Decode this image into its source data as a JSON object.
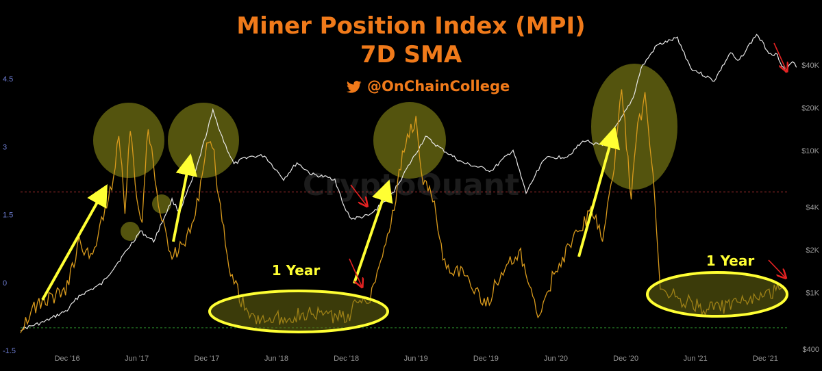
{
  "title": {
    "line1": "Miner Position Index (MPI)",
    "line2": "7D SMA"
  },
  "attribution": {
    "handle": "@OnChainCollege",
    "icon": "twitter-bird-icon"
  },
  "watermark": "CryptoQuant",
  "colors": {
    "background": "#000000",
    "mpi": "#d99a1c",
    "price": "#e8e8e8",
    "title": "#f07a1a",
    "highlight_fill": "#6b6b12",
    "annotation_arrow": "#ffff33",
    "ellipse_outline": "#ffff33",
    "red_arrow": "#e52222",
    "upper_threshold": "#b03030",
    "lower_threshold": "#2a8a2a",
    "left_axis_text": "#6f7fd6",
    "axis_text": "#9a9a9a"
  },
  "annotations": {
    "one_year_left": "1 Year",
    "one_year_right": "1 Year"
  },
  "chart_data": {
    "type": "line",
    "grid": false,
    "x_ticks": [
      "Dec '16",
      "Jun '17",
      "Dec '17",
      "Jun '18",
      "Dec '18",
      "Jun '19",
      "Dec '19",
      "Jun '20",
      "Dec '20",
      "Jun '21",
      "Dec '21"
    ],
    "x_range": [
      "2016-08",
      "2022-02"
    ],
    "left_axis": {
      "label": "",
      "ticks": [
        "4.5",
        "3",
        "1.5",
        "0",
        "-1.5"
      ],
      "range": [
        -1.5,
        5.0
      ]
    },
    "right_axis": {
      "label": "",
      "scale": "log",
      "ticks": [
        "$40K",
        "$20K",
        "$10K",
        "$4K",
        "$2K",
        "$1K",
        "$400"
      ],
      "range": [
        400,
        60000
      ]
    },
    "thresholds": [
      {
        "value": 2,
        "color": "#b03030"
      },
      {
        "value": -1,
        "color": "#2a8a2a"
      }
    ],
    "series": [
      {
        "name": "",
        "axis": "left",
        "color": "#d99a1c",
        "points": [
          [
            "2016-08-01",
            -1.0
          ],
          [
            "2016-09-01",
            -0.6
          ],
          [
            "2016-10-01",
            -0.4
          ],
          [
            "2016-11-01",
            -0.3
          ],
          [
            "2016-12-01",
            -0.1
          ],
          [
            "2017-01-01",
            0.9
          ],
          [
            "2017-02-01",
            0.5
          ],
          [
            "2017-03-01",
            1.4
          ],
          [
            "2017-04-01",
            2.2
          ],
          [
            "2017-04-15",
            3.4
          ],
          [
            "2017-05-01",
            1.6
          ],
          [
            "2017-05-15",
            3.5
          ],
          [
            "2017-06-01",
            1.9
          ],
          [
            "2017-06-15",
            1.4
          ],
          [
            "2017-07-01",
            3.5
          ],
          [
            "2017-08-01",
            1.5
          ],
          [
            "2017-09-01",
            0.6
          ],
          [
            "2017-10-01",
            0.8
          ],
          [
            "2017-11-01",
            1.5
          ],
          [
            "2017-11-15",
            2.2
          ],
          [
            "2017-12-01",
            3.1
          ],
          [
            "2017-12-20",
            2.8
          ],
          [
            "2018-01-10",
            1.3
          ],
          [
            "2018-02-01",
            0.3
          ],
          [
            "2018-03-01",
            -0.4
          ],
          [
            "2018-04-01",
            -0.8
          ],
          [
            "2018-06-01",
            -0.8
          ],
          [
            "2018-08-01",
            -0.7
          ],
          [
            "2018-10-01",
            -0.7
          ],
          [
            "2018-12-01",
            -0.8
          ],
          [
            "2019-01-01",
            -0.4
          ],
          [
            "2019-02-01",
            -0.3
          ],
          [
            "2019-03-01",
            0.5
          ],
          [
            "2019-04-01",
            1.5
          ],
          [
            "2019-05-01",
            3.0
          ],
          [
            "2019-06-01",
            3.6
          ],
          [
            "2019-06-20",
            2.2
          ],
          [
            "2019-07-15",
            1.9
          ],
          [
            "2019-08-15",
            0.4
          ],
          [
            "2019-10-01",
            0.2
          ],
          [
            "2019-12-01",
            -0.5
          ],
          [
            "2020-01-15",
            0.3
          ],
          [
            "2020-03-01",
            0.6
          ],
          [
            "2020-04-15",
            -0.8
          ],
          [
            "2020-06-01",
            0.3
          ],
          [
            "2020-07-15",
            0.9
          ],
          [
            "2020-09-01",
            1.6
          ],
          [
            "2020-10-01",
            1.0
          ],
          [
            "2020-11-01",
            2.6
          ],
          [
            "2020-11-20",
            4.3
          ],
          [
            "2020-12-15",
            1.9
          ],
          [
            "2021-01-01",
            3.4
          ],
          [
            "2021-01-20",
            4.1
          ],
          [
            "2021-02-10",
            2.5
          ],
          [
            "2021-03-01",
            -0.1
          ],
          [
            "2021-05-01",
            -0.4
          ],
          [
            "2021-07-01",
            -0.6
          ],
          [
            "2021-09-01",
            -0.5
          ],
          [
            "2021-11-01",
            -0.4
          ],
          [
            "2022-01-15",
            -0.1
          ]
        ]
      },
      {
        "name": "",
        "axis": "right",
        "color": "#e8e8e8",
        "points": [
          [
            "2016-08-01",
            550
          ],
          [
            "2016-10-01",
            620
          ],
          [
            "2016-12-01",
            750
          ],
          [
            "2017-01-01",
            950
          ],
          [
            "2017-03-01",
            1150
          ],
          [
            "2017-05-01",
            1900
          ],
          [
            "2017-06-10",
            2700
          ],
          [
            "2017-07-15",
            2300
          ],
          [
            "2017-09-01",
            4500
          ],
          [
            "2017-09-20",
            3700
          ],
          [
            "2017-11-01",
            7000
          ],
          [
            "2017-12-17",
            19000
          ],
          [
            "2018-01-15",
            11500
          ],
          [
            "2018-02-10",
            8000
          ],
          [
            "2018-03-15",
            9000
          ],
          [
            "2018-05-01",
            9200
          ],
          [
            "2018-06-20",
            6300
          ],
          [
            "2018-07-25",
            8200
          ],
          [
            "2018-09-01",
            6800
          ],
          [
            "2018-11-01",
            6300
          ],
          [
            "2018-11-25",
            4000
          ],
          [
            "2018-12-15",
            3300
          ],
          [
            "2019-02-01",
            3500
          ],
          [
            "2019-04-01",
            5000
          ],
          [
            "2019-06-26",
            12500
          ],
          [
            "2019-08-01",
            10500
          ],
          [
            "2019-10-01",
            8200
          ],
          [
            "2019-12-15",
            7200
          ],
          [
            "2020-02-10",
            10100
          ],
          [
            "2020-03-15",
            5000
          ],
          [
            "2020-05-01",
            8800
          ],
          [
            "2020-07-01",
            9100
          ],
          [
            "2020-08-15",
            11800
          ],
          [
            "2020-10-01",
            10700
          ],
          [
            "2020-11-15",
            16000
          ],
          [
            "2020-12-20",
            23500
          ],
          [
            "2021-01-10",
            38000
          ],
          [
            "2021-02-20",
            55000
          ],
          [
            "2021-04-15",
            62000
          ],
          [
            "2021-05-20",
            38000
          ],
          [
            "2021-07-20",
            31000
          ],
          [
            "2021-09-01",
            49000
          ],
          [
            "2021-09-20",
            42000
          ],
          [
            "2021-11-08",
            66000
          ],
          [
            "2021-12-10",
            49000
          ],
          [
            "2022-01-01",
            47000
          ],
          [
            "2022-01-22",
            36000
          ],
          [
            "2022-02-10",
            42000
          ],
          [
            "2022-02-20",
            38500
          ]
        ]
      }
    ]
  }
}
